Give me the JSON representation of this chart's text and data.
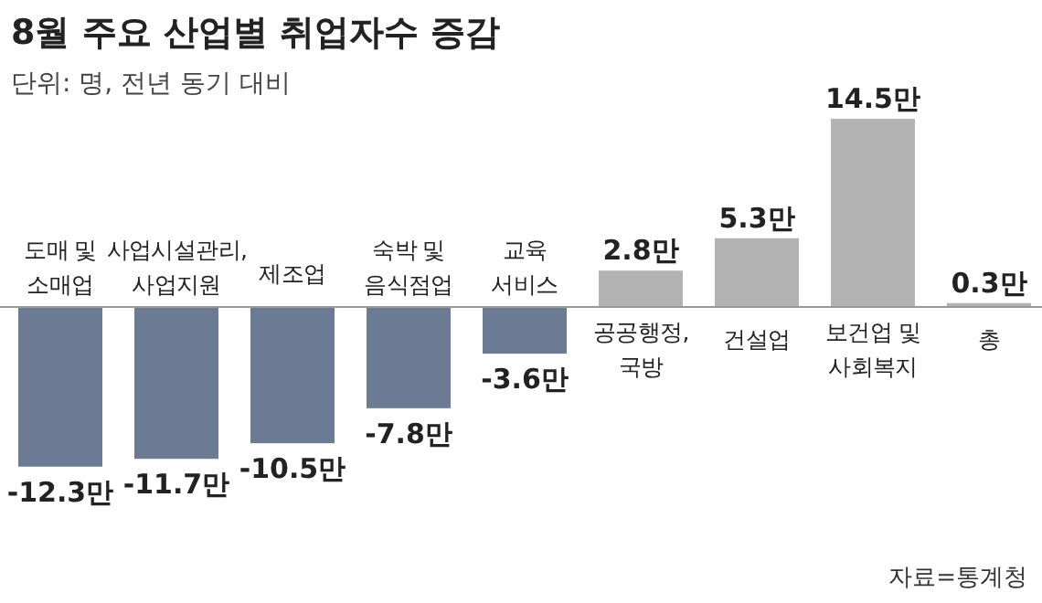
{
  "chart_data": {
    "type": "bar",
    "title": "8월 주요 산업별 취업자수 증감",
    "subtitle": "단위: 명, 전년 동기 대비",
    "categories": [
      "도매 및\n소매업",
      "사업시설관리,\n사업지원",
      "제조업",
      "숙박 및\n음식점업",
      "교육\n서비스",
      "공공행정,\n국방",
      "건설업",
      "보건업 및\n사회복지",
      "총"
    ],
    "values": [
      -12.3,
      -11.7,
      -10.5,
      -7.8,
      -3.6,
      2.8,
      5.3,
      14.5,
      0.3
    ],
    "value_labels": [
      "-12.3만",
      "-11.7만",
      "-10.5만",
      "-7.8만",
      "-3.6만",
      "2.8만",
      "5.3만",
      "14.5만",
      "0.3만"
    ],
    "colors": [
      "#6b7b93",
      "#6b7b93",
      "#6b7b93",
      "#6b7b93",
      "#6b7b93",
      "#b3b3b3",
      "#b3b3b3",
      "#b3b3b3",
      "#b3b3b3"
    ],
    "annotations": [
      "자료=통계청"
    ]
  }
}
